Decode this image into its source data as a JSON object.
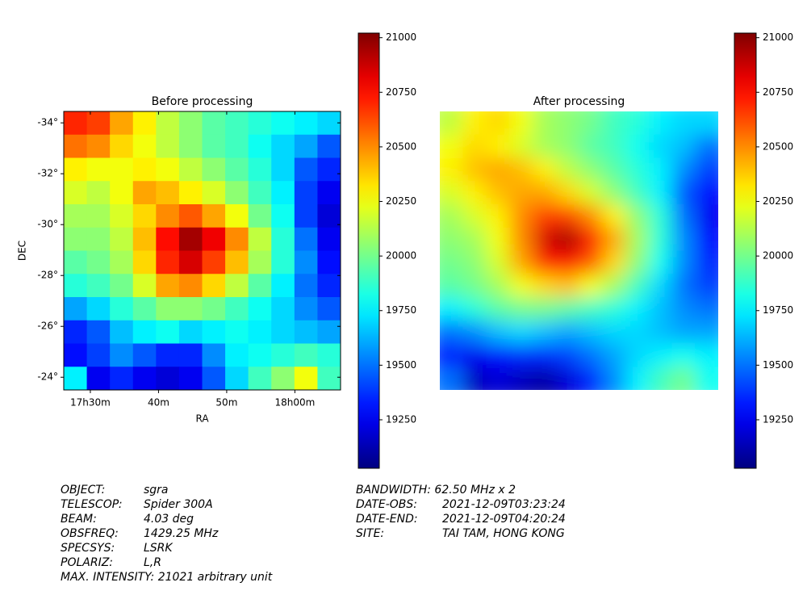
{
  "chart_data": [
    {
      "type": "heatmap",
      "title": "Before processing",
      "xlabel": "RA",
      "ylabel": "DEC",
      "colormap": "jet",
      "interpolation": "nearest",
      "xlim": [
        1046.1,
        1086.7
      ],
      "xticks": [
        {
          "value": 1050,
          "label": "17h30m"
        },
        {
          "value": 1060,
          "label": "40m"
        },
        {
          "value": 1070,
          "label": "50m"
        },
        {
          "value": 1080,
          "label": "18h00m"
        }
      ],
      "ylim": [
        -34.45,
        -23.5
      ],
      "y_inverted": true,
      "yticks": [
        {
          "value": -34,
          "label": "-34°"
        },
        {
          "value": -32,
          "label": "-32°"
        },
        {
          "value": -30,
          "label": "-30°"
        },
        {
          "value": -28,
          "label": "-28°"
        },
        {
          "value": -26,
          "label": "-26°"
        },
        {
          "value": -24,
          "label": "-24°"
        }
      ],
      "clim": [
        19028,
        21021
      ],
      "cticks": [
        19250,
        19500,
        19750,
        20000,
        20250,
        20500,
        20750,
        21000
      ],
      "z": [
        [
          20700,
          20650,
          20450,
          20300,
          20150,
          20050,
          19950,
          19900,
          19850,
          19800,
          19750,
          19700
        ],
        [
          20550,
          20500,
          20350,
          20250,
          20150,
          20050,
          19950,
          19900,
          19800,
          19700,
          19600,
          19450
        ],
        [
          20300,
          20250,
          20250,
          20300,
          20250,
          20150,
          20050,
          19950,
          19850,
          19700,
          19450,
          19350
        ],
        [
          20200,
          20150,
          20250,
          20450,
          20400,
          20300,
          20200,
          20050,
          19900,
          19750,
          19400,
          19250
        ],
        [
          20100,
          20100,
          20200,
          20350,
          20500,
          20600,
          20450,
          20250,
          20000,
          19800,
          19400,
          19200
        ],
        [
          20050,
          20050,
          20150,
          20400,
          20750,
          20950,
          20800,
          20500,
          20150,
          19850,
          19500,
          19250
        ],
        [
          19950,
          20000,
          20100,
          20350,
          20700,
          20850,
          20650,
          20400,
          20100,
          19850,
          19550,
          19300
        ],
        [
          19850,
          19900,
          20000,
          20200,
          20450,
          20500,
          20350,
          20150,
          19950,
          19750,
          19500,
          19350
        ],
        [
          19600,
          19700,
          19850,
          19950,
          20050,
          20050,
          20000,
          19900,
          19800,
          19700,
          19550,
          19450
        ],
        [
          19350,
          19450,
          19650,
          19750,
          19800,
          19700,
          19750,
          19800,
          19750,
          19700,
          19650,
          19600
        ],
        [
          19300,
          19400,
          19550,
          19450,
          19350,
          19350,
          19550,
          19750,
          19800,
          19850,
          19900,
          19850
        ],
        [
          19750,
          19250,
          19350,
          19250,
          19200,
          19250,
          19450,
          19700,
          19900,
          20050,
          20250,
          19900
        ]
      ]
    },
    {
      "type": "heatmap",
      "title": "After processing",
      "colormap": "jet",
      "interpolation": "bicubic",
      "clim": [
        19028,
        21021
      ],
      "cticks": [
        19250,
        19500,
        19750,
        20000,
        20250,
        20500,
        20750,
        21000
      ],
      "z": [
        [
          20150,
          20300,
          20350,
          20250,
          20100,
          20050,
          20000,
          19900,
          19850,
          19750,
          19700,
          19700
        ],
        [
          20250,
          20350,
          20300,
          20200,
          20100,
          20050,
          19950,
          19900,
          19800,
          19700,
          19650,
          19500
        ],
        [
          20300,
          20400,
          20450,
          20400,
          20300,
          20150,
          20050,
          19950,
          19850,
          19750,
          19550,
          19400
        ],
        [
          20200,
          20300,
          20400,
          20450,
          20450,
          20350,
          20200,
          20050,
          19900,
          19750,
          19450,
          19300
        ],
        [
          20100,
          20200,
          20300,
          20500,
          20650,
          20650,
          20500,
          20300,
          20050,
          19850,
          19500,
          19250
        ],
        [
          20050,
          20100,
          20250,
          20500,
          20850,
          20950,
          20750,
          20450,
          20100,
          19850,
          19550,
          19300
        ],
        [
          20000,
          20050,
          20200,
          20450,
          20700,
          20750,
          20600,
          20350,
          20050,
          19800,
          19550,
          19350
        ],
        [
          19950,
          20000,
          20100,
          20250,
          20350,
          20400,
          20250,
          20100,
          19900,
          19700,
          19500,
          19400
        ],
        [
          19750,
          19850,
          19950,
          20000,
          20000,
          19950,
          19900,
          19850,
          19750,
          19650,
          19550,
          19500
        ],
        [
          19500,
          19550,
          19650,
          19700,
          19650,
          19600,
          19650,
          19700,
          19700,
          19650,
          19600,
          19600
        ],
        [
          19300,
          19250,
          19300,
          19350,
          19350,
          19400,
          19500,
          19600,
          19700,
          19750,
          19800,
          19750
        ],
        [
          19500,
          19150,
          19200,
          19150,
          19100,
          19200,
          19350,
          19550,
          19750,
          19900,
          20000,
          19800
        ]
      ]
    }
  ],
  "footer": {
    "left": [
      {
        "label": "OBJECT:",
        "value": "sgra"
      },
      {
        "label": "TELESCOP:",
        "value": "Spider 300A"
      },
      {
        "label": "BEAM:",
        "value": "4.03 deg"
      },
      {
        "label": "OBSFREQ:",
        "value": "1429.25 MHz"
      },
      {
        "label": "SPECSYS:",
        "value": "LSRK"
      },
      {
        "label": "POLARIZ:",
        "value": "L,R"
      },
      {
        "text": "MAX. INTENSITY: 21021 arbitrary unit"
      }
    ],
    "right": [
      {
        "text": "BANDWIDTH: 62.50 MHz x 2"
      },
      {
        "label": "DATE-OBS:",
        "value": "2021-12-09T03:23:24"
      },
      {
        "label": "DATE-END:",
        "value": "2021-12-09T04:20:24"
      },
      {
        "label": "SITE:",
        "value": "TAI TAM, HONG KONG"
      }
    ]
  }
}
